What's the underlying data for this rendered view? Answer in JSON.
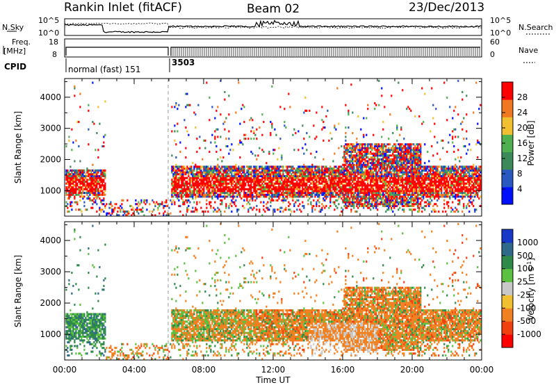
{
  "header": {
    "station": "Rankin Inlet (fitACF)",
    "beam": "Beam 02",
    "date": "23/Dec/2013"
  },
  "summary_panels": {
    "nsky_label": "N.Sky",
    "nsearch_label": "N.Search",
    "freq_label_top": "Freq.",
    "freq_label_bottom": "[MHz]",
    "nave_label": "Nave",
    "cpid_label": "CPID",
    "noise_ticks": [
      "10^5",
      "10^0"
    ],
    "freq_ticks": [
      "18",
      "8"
    ],
    "nave_ticks": [
      "60",
      "0"
    ],
    "cpid_segments": [
      {
        "label": "normal (fast) 151",
        "start_hour": 0,
        "end_hour": 6
      },
      {
        "label": "3503",
        "start_hour": 6,
        "end_hour": 24
      }
    ]
  },
  "chart_data": [
    {
      "type": "heatmap",
      "quantity": "Power",
      "ylabel": "Slant Range [km]",
      "xlabel": "",
      "ylim": [
        180,
        4600
      ],
      "xlim": [
        0,
        24
      ],
      "y_ticks": [
        1000,
        2000,
        3000,
        4000
      ],
      "colorbar": {
        "label": "Power [dB]",
        "ticks": [
          "28",
          "24",
          "20",
          "16",
          "12",
          "8",
          "4"
        ],
        "range": [
          0,
          32
        ],
        "colors": [
          "#0010ff",
          "#2858c0",
          "#3c8a5a",
          "#50b050",
          "#f0c030",
          "#f07820",
          "#ff0000"
        ]
      },
      "dominant_scatter_band_km": [
        800,
        1800
      ]
    },
    {
      "type": "heatmap",
      "quantity": "Velocity",
      "ylabel": "Slant Range [km]",
      "xlabel": "Time UT",
      "ylim": [
        180,
        4600
      ],
      "xlim": [
        0,
        24
      ],
      "y_ticks": [
        1000,
        2000,
        3000,
        4000
      ],
      "x_ticks": [
        "00:00",
        "04:00",
        "08:00",
        "12:00",
        "16:00",
        "20:00",
        "00:00"
      ],
      "colorbar": {
        "label": "Velocity [m s",
        "label_sup": "-1",
        "label_end": "]",
        "ticks": [
          "1000",
          "500",
          "100",
          "25",
          "-25",
          "-100",
          "-500",
          "-1000"
        ],
        "colors": [
          "#1838c8",
          "#2f6a8a",
          "#2f8a4a",
          "#5cc040",
          "#c8c8c8",
          "#f0c030",
          "#f08020",
          "#f04010",
          "#ff0000"
        ]
      },
      "dominant_scatter_band_km": [
        800,
        1800
      ]
    }
  ],
  "colors": {
    "frame": "#000000",
    "dashed_marker": "#999999"
  }
}
